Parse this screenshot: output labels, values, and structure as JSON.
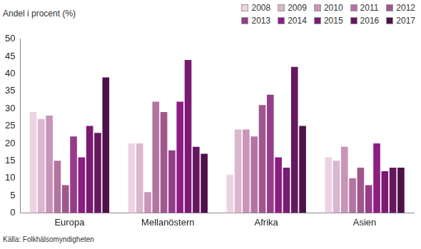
{
  "chart_data": {
    "type": "bar",
    "y_label": "Andel i procent (%)",
    "source": "Källa: Folkhälsomyndigheten",
    "categories": [
      "Europa",
      "Mellanöstern",
      "Afrika",
      "Asien"
    ],
    "series": [
      {
        "name": "2008",
        "color": "#ecd3e3",
        "values": [
          29,
          20,
          11,
          16
        ]
      },
      {
        "name": "2009",
        "color": "#dbb6cf",
        "values": [
          27,
          20,
          24,
          15
        ]
      },
      {
        "name": "2010",
        "color": "#c894b8",
        "values": [
          28,
          6,
          24,
          19
        ]
      },
      {
        "name": "2011",
        "color": "#b474a1",
        "values": [
          15,
          32,
          22,
          10
        ]
      },
      {
        "name": "2012",
        "color": "#a0588c",
        "values": [
          8,
          29,
          31,
          13
        ]
      },
      {
        "name": "2013",
        "color": "#963c8a",
        "values": [
          22,
          18,
          34,
          8
        ]
      },
      {
        "name": "2014",
        "color": "#8c1d82",
        "values": [
          16,
          32,
          16,
          20
        ]
      },
      {
        "name": "2015",
        "color": "#7a1a72",
        "values": [
          25,
          44,
          13,
          12
        ]
      },
      {
        "name": "2016",
        "color": "#65175e",
        "values": [
          23,
          19,
          42,
          13
        ]
      },
      {
        "name": "2017",
        "color": "#4e1148",
        "values": [
          39,
          17,
          25,
          13
        ]
      }
    ],
    "ylim": [
      0,
      50
    ],
    "yticks": [
      0,
      5,
      10,
      15,
      20,
      25,
      30,
      35,
      40,
      45,
      50
    ],
    "grid": false,
    "legend": "top-right"
  }
}
